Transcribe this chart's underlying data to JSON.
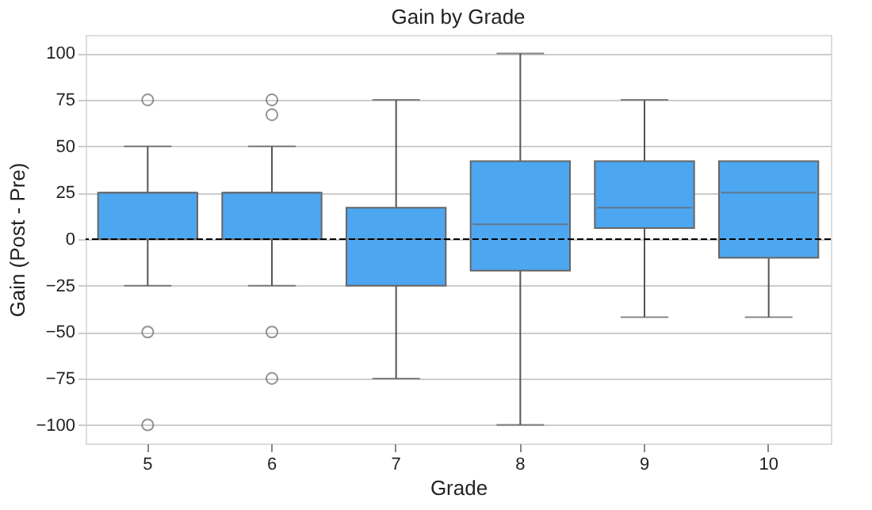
{
  "chart_data": {
    "type": "box",
    "title": "Gain by Grade",
    "xlabel": "Grade",
    "ylabel": "Gain (Post - Pre)",
    "categories": [
      "5",
      "6",
      "7",
      "8",
      "9",
      "10"
    ],
    "boxes": [
      {
        "low": -25,
        "q1": 0,
        "median": 25,
        "q3": 25,
        "high": 50,
        "outliers": [
          75,
          -50,
          -100
        ]
      },
      {
        "low": -25,
        "q1": 0,
        "median": 25,
        "q3": 25,
        "high": 50,
        "outliers": [
          75,
          67,
          -50,
          -75
        ]
      },
      {
        "low": -75,
        "q1": -25,
        "median": 0,
        "q3": 17,
        "high": 75
      },
      {
        "low": -100,
        "q1": -17,
        "median": 8,
        "q3": 42,
        "high": 100
      },
      {
        "low": -42,
        "q1": 6,
        "median": 17,
        "q3": 42,
        "high": 75
      },
      {
        "low": -42,
        "q1": -10,
        "median": 25,
        "q3": 42,
        "high": 42
      }
    ],
    "color": "#4da6f0",
    "ylim": [
      -110,
      110
    ],
    "yticks": [
      -100,
      -75,
      -50,
      -25,
      0,
      25,
      50,
      75,
      100
    ],
    "grid": "y",
    "ref_lines": [
      {
        "axis": "y",
        "value": 0,
        "color": "#000000",
        "line_style": "dashed"
      }
    ]
  }
}
